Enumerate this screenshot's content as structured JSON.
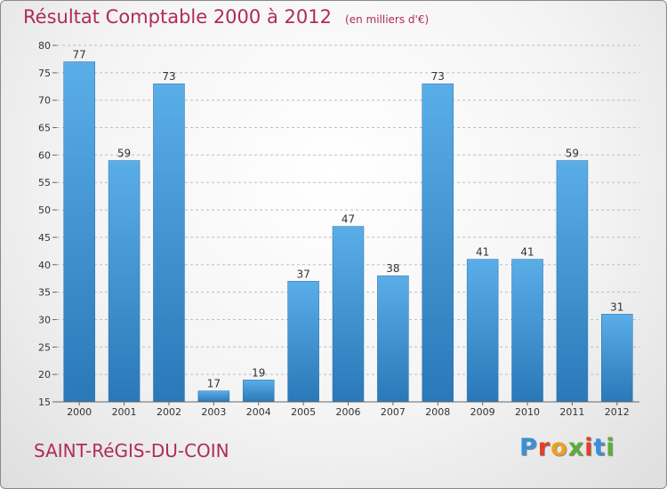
{
  "chart_data": {
    "type": "bar",
    "title": "Résultat Comptable 2000 à 2012",
    "subtitle": "(en milliers d'€)",
    "categories": [
      "2000",
      "2001",
      "2002",
      "2003",
      "2004",
      "2005",
      "2006",
      "2007",
      "2008",
      "2009",
      "2010",
      "2011",
      "2012"
    ],
    "values": [
      77,
      59,
      73,
      17,
      19,
      37,
      47,
      38,
      73,
      41,
      41,
      59,
      31
    ],
    "ylim": [
      15,
      80
    ],
    "yticks": [
      15,
      20,
      25,
      30,
      35,
      40,
      45,
      50,
      55,
      60,
      65,
      70,
      75,
      80
    ],
    "xlabel": "",
    "ylabel": "",
    "grid": true,
    "bar_color": "#4a9ee0"
  },
  "footer": {
    "commune": "SAINT-RéGIS-DU-COIN",
    "logo_letters": [
      "P",
      "r",
      "o",
      "x",
      "i",
      "t",
      "i"
    ],
    "logo_colors": [
      "#3a8fd8",
      "#e0402a",
      "#f0a020",
      "#5aae3a",
      "#e0402a",
      "#3a8fd8",
      "#5aae3a"
    ]
  }
}
